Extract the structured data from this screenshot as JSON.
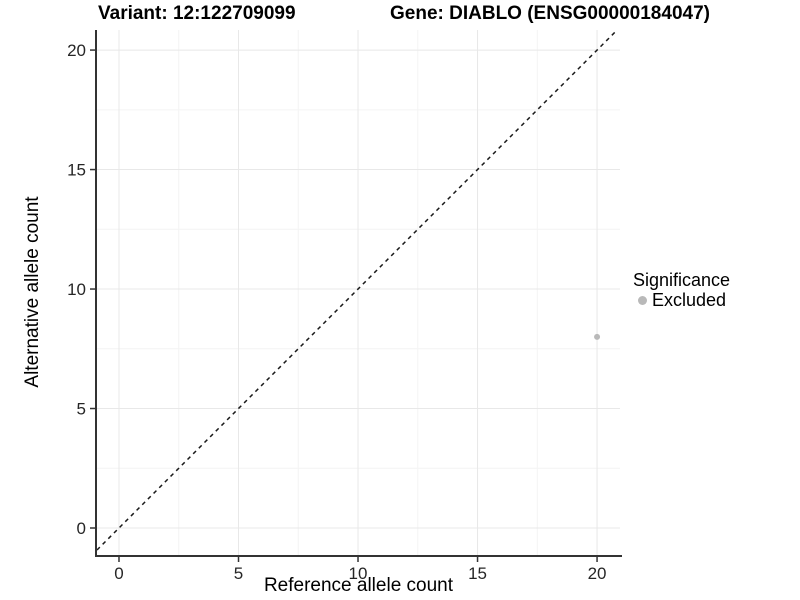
{
  "header": {
    "variant_title": "Variant: 12:122709099",
    "gene_title": "Gene: DIABLO (ENSG00000184047)"
  },
  "legend": {
    "title": "Significance",
    "items": [
      {
        "label": "Excluded",
        "color": "#b9b9b9"
      }
    ]
  },
  "colors": {
    "background": "#ffffff",
    "grid_major": "#e8e8e8",
    "grid_minor": "#f4f4f4",
    "axis_line": "#333333",
    "tick_mark": "#333333",
    "tick_label": "#262626",
    "point": "#b9b9b9",
    "reference_line": "#1a1a1a"
  },
  "chart_data": {
    "type": "scatter",
    "title": "",
    "xlabel": "Reference allele count",
    "ylabel": "Alternative allele count",
    "xlim": [
      -0.92,
      20.96
    ],
    "ylim": [
      -1.13,
      20.84
    ],
    "xticks": [
      0,
      5,
      10,
      15,
      20
    ],
    "yticks": [
      0,
      5,
      10,
      15,
      20
    ],
    "minor_xticks": [
      2.5,
      7.5,
      12.5,
      17.5
    ],
    "minor_yticks": [
      2.5,
      7.5,
      12.5,
      17.5
    ],
    "grid": "major+minor",
    "legend_position": "right",
    "series": [
      {
        "name": "Excluded",
        "color": "#b9b9b9",
        "marker": "circle",
        "points": [
          {
            "x": 20,
            "y": 8
          }
        ]
      }
    ],
    "reference_line": {
      "kind": "identity y=x",
      "style": "dashed",
      "color": "#1a1a1a"
    }
  }
}
